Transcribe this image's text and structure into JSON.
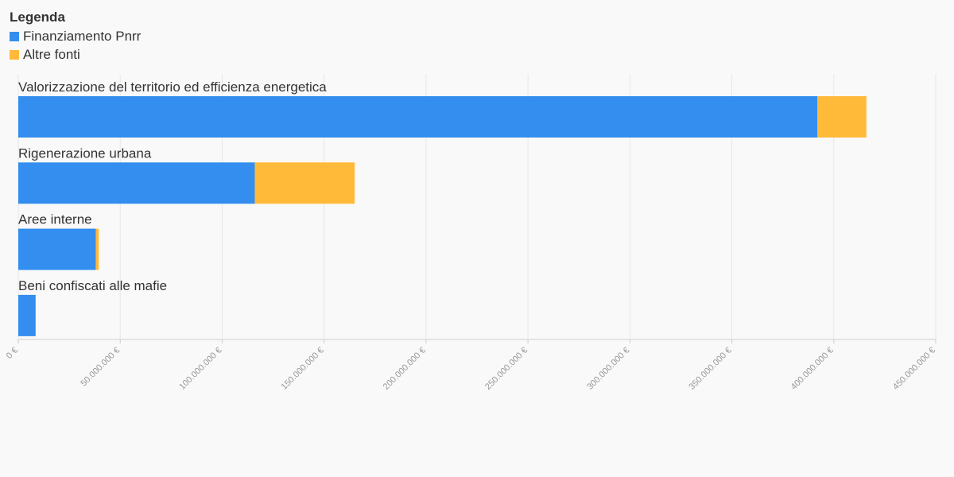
{
  "legend": {
    "title": "Legenda"
  },
  "chart_data": {
    "type": "bar",
    "orientation": "horizontal",
    "stacked": true,
    "categories": [
      "Valorizzazione del territorio ed efficienza energetica",
      "Rigenerazione urbana",
      "Aree interne",
      "Beni confiscati alle mafie"
    ],
    "series": [
      {
        "name": "Finanziamento Pnrr",
        "color": "#338EEF",
        "values": [
          392000000,
          116000000,
          38000000,
          8500000
        ]
      },
      {
        "name": "Altre fonti",
        "color": "#FFBA39",
        "values": [
          24000000,
          49000000,
          1500000,
          0
        ]
      }
    ],
    "xlim": [
      0,
      450000000
    ],
    "xticks": [
      0,
      50000000,
      100000000,
      150000000,
      200000000,
      250000000,
      300000000,
      350000000,
      400000000,
      450000000
    ],
    "xtick_labels": [
      "0 €",
      "50.000.000 €",
      "100.000.000 €",
      "150.000.000 €",
      "200.000.000 €",
      "250.000.000 €",
      "300.000.000 €",
      "350.000.000 €",
      "400.000.000 €",
      "450.000.000 €"
    ],
    "grid": true,
    "legend_position": "top-left"
  }
}
